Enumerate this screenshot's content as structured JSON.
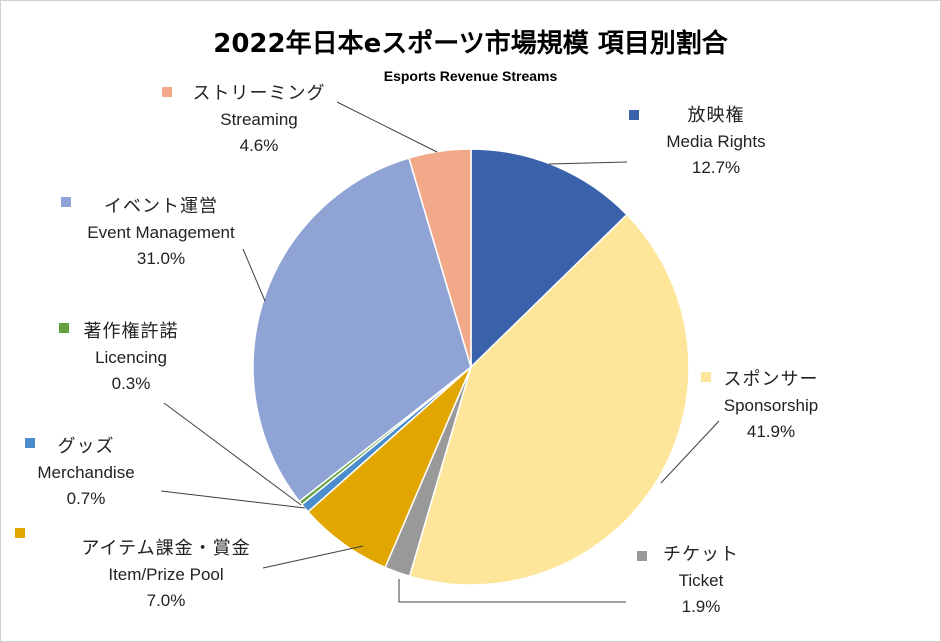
{
  "chart_data": {
    "type": "pie",
    "title": "2022年日本eスポーツ市場規模 項目別割合",
    "subtitle": "Esports Revenue Streams",
    "start_angle_deg": 0,
    "direction": "clockwise",
    "slices": [
      {
        "jp": "放映権",
        "en": "Media Rights",
        "value": 12.7,
        "pct": "12.7%",
        "color": "#3a62ab"
      },
      {
        "jp": "スポンサー",
        "en": "Sponsorship",
        "value": 41.9,
        "pct": "41.9%",
        "color": "#fde59a"
      },
      {
        "jp": "チケット",
        "en": "Ticket",
        "value": 1.9,
        "pct": "1.9%",
        "color": "#999999"
      },
      {
        "jp": "アイテム課金・賞金",
        "en": "Item/Prize Pool",
        "value": 7.0,
        "pct": "7.0%",
        "color": "#e1a600"
      },
      {
        "jp": "グッズ",
        "en": "Merchandise",
        "value": 0.7,
        "pct": "0.7%",
        "color": "#4a8ccc"
      },
      {
        "jp": "著作権許諾",
        "en": "Licencing",
        "value": 0.3,
        "pct": "0.3%",
        "color": "#63a23b"
      },
      {
        "jp": "イベント運営",
        "en": "Event Management",
        "value": 31.0,
        "pct": "31.0%",
        "color": "#8fa3d4"
      },
      {
        "jp": "ストリーミング",
        "en": "Streaming",
        "value": 4.6,
        "pct": "4.6%",
        "color": "#f2a98a"
      }
    ]
  }
}
